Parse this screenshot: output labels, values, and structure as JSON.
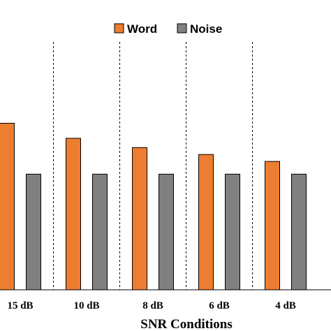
{
  "chart_data": {
    "type": "bar",
    "categories": [
      "15 dB",
      "10 dB",
      "8 dB",
      "6 dB",
      "4 dB"
    ],
    "series": [
      {
        "name": "Word",
        "color": "#ED7D31",
        "values": [
          1.44,
          1.31,
          1.23,
          1.17,
          1.11
        ]
      },
      {
        "name": "Noise",
        "color": "#808080",
        "values": [
          1.0,
          1.0,
          1.0,
          1.0,
          1.0
        ]
      }
    ],
    "xlabel": "SNR Conditions",
    "ylim": [
      0,
      1.6
    ],
    "legend_position": "top-center",
    "grid": false,
    "category_separators": "dashed-vertical"
  }
}
